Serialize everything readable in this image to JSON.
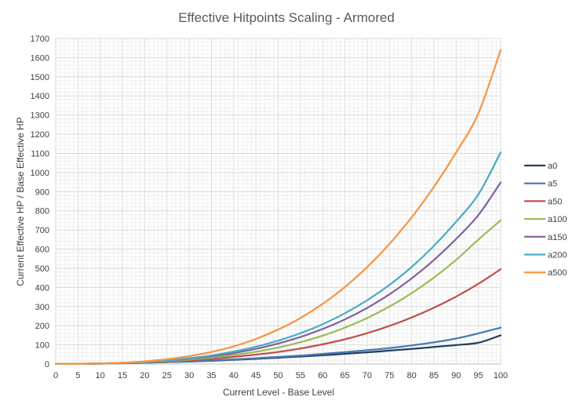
{
  "chart_data": {
    "type": "line",
    "title": "Effective Hitpoints Scaling - Armored",
    "xlabel": "Current Level - Base Level",
    "ylabel": "Current Effective HP / Base Effective HP",
    "xlim": [
      0,
      100
    ],
    "ylim": [
      0,
      1700
    ],
    "x_ticks": [
      0,
      5,
      10,
      15,
      20,
      25,
      30,
      35,
      40,
      45,
      50,
      55,
      60,
      65,
      70,
      75,
      80,
      85,
      90,
      95,
      100
    ],
    "y_ticks": [
      0,
      100,
      200,
      300,
      400,
      500,
      600,
      700,
      800,
      900,
      1000,
      1100,
      1200,
      1300,
      1400,
      1500,
      1600,
      1700
    ],
    "grid": true,
    "legend_position": "right",
    "x": [
      0,
      5,
      10,
      15,
      20,
      25,
      30,
      35,
      40,
      45,
      50,
      55,
      60,
      65,
      70,
      75,
      80,
      85,
      90,
      95,
      100
    ],
    "series": [
      {
        "name": "a0",
        "color": "#243f60",
        "values": [
          1,
          1,
          2,
          4,
          7,
          10,
          13,
          17,
          22,
          27,
          33,
          39,
          46,
          53,
          61,
          70,
          79,
          89,
          99,
          111,
          150
        ]
      },
      {
        "name": "a5",
        "color": "#4a7ab4",
        "values": [
          1,
          1,
          2,
          4,
          7,
          10,
          14,
          19,
          24,
          30,
          37,
          44,
          53,
          62,
          72,
          83,
          97,
          113,
          133,
          160,
          190
        ]
      },
      {
        "name": "a50",
        "color": "#c0504d",
        "values": [
          1,
          1,
          2,
          5,
          8,
          13,
          19,
          27,
          37,
          49,
          63,
          81,
          103,
          129,
          161,
          199,
          243,
          294,
          352,
          419,
          495
        ]
      },
      {
        "name": "a100",
        "color": "#9bbb59",
        "values": [
          1,
          1,
          2,
          5,
          9,
          15,
          23,
          34,
          47,
          64,
          86,
          114,
          148,
          190,
          240,
          300,
          370,
          451,
          544,
          650,
          750
        ]
      },
      {
        "name": "a150",
        "color": "#8064a2",
        "values": [
          1,
          1,
          3,
          6,
          10,
          17,
          27,
          40,
          57,
          79,
          107,
          141,
          183,
          233,
          293,
          364,
          447,
          543,
          653,
          778,
          948
        ]
      },
      {
        "name": "a200",
        "color": "#4bacc6",
        "values": [
          1,
          1,
          3,
          6,
          11,
          19,
          30,
          45,
          65,
          90,
          122,
          161,
          208,
          265,
          333,
          413,
          507,
          617,
          743,
          886,
          1105
        ]
      },
      {
        "name": "a500",
        "color": "#f79646",
        "values": [
          1,
          1,
          3,
          7,
          14,
          25,
          41,
          63,
          92,
          131,
          180,
          240,
          314,
          402,
          506,
          627,
          766,
          925,
          1105,
          1309,
          1640
        ]
      }
    ]
  }
}
